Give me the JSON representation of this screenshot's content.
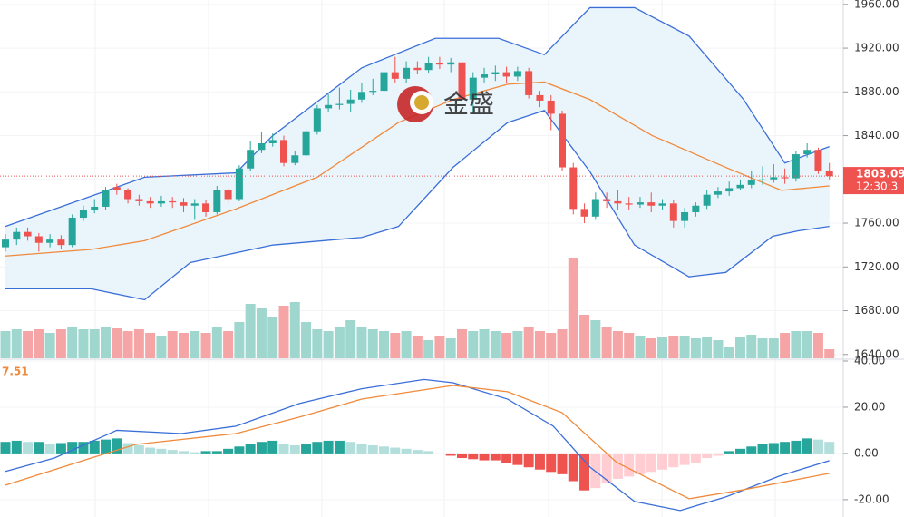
{
  "chart_data": {
    "type": "candlestick",
    "watermark": "金盛",
    "up_color": "#26a69a",
    "down_color": "#ef5350",
    "volume_up_color": "#9fd7cf",
    "volume_down_color": "#f5a5a5",
    "band_fill": "#eaf4fb",
    "ylim": [
      1636.5,
      1964
    ],
    "yticks": [
      {
        "value": 1960,
        "label": "1960.00"
      },
      {
        "value": 1920,
        "label": "1920.00"
      },
      {
        "value": 1880,
        "label": "1880.00"
      },
      {
        "value": 1840,
        "label": "1840.00"
      },
      {
        "value": 1800,
        "label": "1800.00"
      },
      {
        "value": 1760,
        "label": "1760.00"
      },
      {
        "value": 1720,
        "label": "1720.00"
      },
      {
        "value": 1680,
        "label": "1680.00"
      },
      {
        "value": 1640,
        "label": "1640.00"
      }
    ],
    "last_price": 1803.09,
    "timer": "12:30:3",
    "candles": [
      [
        1738,
        1750,
        1734,
        1745
      ],
      [
        1745,
        1756,
        1740,
        1752
      ],
      [
        1752,
        1756,
        1744,
        1748
      ],
      [
        1748,
        1751,
        1734,
        1742
      ],
      [
        1742,
        1750,
        1738,
        1745
      ],
      [
        1745,
        1749,
        1736,
        1740
      ],
      [
        1740,
        1768,
        1738,
        1765
      ],
      [
        1765,
        1776,
        1762,
        1772
      ],
      [
        1772,
        1782,
        1769,
        1775
      ],
      [
        1775,
        1793,
        1772,
        1790
      ],
      [
        1793,
        1796,
        1786,
        1790
      ],
      [
        1790,
        1792,
        1778,
        1782
      ],
      [
        1782,
        1786,
        1776,
        1780
      ],
      [
        1780,
        1784,
        1774,
        1778
      ],
      [
        1778,
        1785,
        1775,
        1780
      ],
      [
        1780,
        1784,
        1774,
        1779
      ],
      [
        1779,
        1783,
        1770,
        1776
      ],
      [
        1776,
        1782,
        1763,
        1778
      ],
      [
        1778,
        1781,
        1766,
        1770
      ],
      [
        1770,
        1794,
        1768,
        1790
      ],
      [
        1790,
        1792,
        1778,
        1782
      ],
      [
        1782,
        1813,
        1780,
        1810
      ],
      [
        1810,
        1835,
        1808,
        1827
      ],
      [
        1827,
        1843,
        1824,
        1833
      ],
      [
        1833,
        1842,
        1830,
        1836
      ],
      [
        1836,
        1840,
        1812,
        1815
      ],
      [
        1815,
        1826,
        1813,
        1822
      ],
      [
        1822,
        1847,
        1820,
        1844
      ],
      [
        1844,
        1868,
        1841,
        1865
      ],
      [
        1865,
        1878,
        1862,
        1868
      ],
      [
        1868,
        1884,
        1864,
        1869
      ],
      [
        1869,
        1882,
        1862,
        1873
      ],
      [
        1873,
        1888,
        1870,
        1880
      ],
      [
        1880,
        1892,
        1877,
        1881
      ],
      [
        1881,
        1903,
        1878,
        1898
      ],
      [
        1898,
        1912,
        1888,
        1892
      ],
      [
        1892,
        1908,
        1888,
        1902
      ],
      [
        1902,
        1908,
        1896,
        1900
      ],
      [
        1900,
        1912,
        1897,
        1906
      ],
      [
        1906,
        1912,
        1901,
        1905
      ],
      [
        1905,
        1911,
        1898,
        1907
      ],
      [
        1907,
        1910,
        1868,
        1873
      ],
      [
        1873,
        1898,
        1860,
        1893
      ],
      [
        1893,
        1902,
        1888,
        1896
      ],
      [
        1896,
        1904,
        1890,
        1898
      ],
      [
        1898,
        1903,
        1888,
        1894
      ],
      [
        1894,
        1903,
        1890,
        1899
      ],
      [
        1899,
        1902,
        1874,
        1877
      ],
      [
        1877,
        1881,
        1866,
        1872
      ],
      [
        1872,
        1877,
        1845,
        1860
      ],
      [
        1860,
        1863,
        1808,
        1811
      ],
      [
        1811,
        1815,
        1768,
        1773
      ],
      [
        1773,
        1778,
        1760,
        1766
      ],
      [
        1766,
        1788,
        1763,
        1782
      ],
      [
        1782,
        1788,
        1774,
        1780
      ],
      [
        1780,
        1790,
        1772,
        1778
      ],
      [
        1778,
        1784,
        1772,
        1777
      ],
      [
        1777,
        1784,
        1774,
        1779
      ],
      [
        1779,
        1788,
        1770,
        1776
      ],
      [
        1776,
        1782,
        1772,
        1778
      ],
      [
        1778,
        1781,
        1756,
        1762
      ],
      [
        1762,
        1774,
        1756,
        1770
      ],
      [
        1770,
        1779,
        1766,
        1776
      ],
      [
        1776,
        1790,
        1773,
        1786
      ],
      [
        1786,
        1793,
        1783,
        1789
      ],
      [
        1789,
        1798,
        1785,
        1792
      ],
      [
        1792,
        1800,
        1790,
        1795
      ],
      [
        1795,
        1808,
        1792,
        1799
      ],
      [
        1799,
        1812,
        1795,
        1800
      ],
      [
        1800,
        1814,
        1797,
        1802
      ],
      [
        1802,
        1810,
        1796,
        1801
      ],
      [
        1801,
        1826,
        1798,
        1823
      ],
      [
        1823,
        1833,
        1820,
        1827
      ],
      [
        1827,
        1829,
        1805,
        1808
      ],
      [
        1808,
        1815,
        1800,
        1803
      ]
    ],
    "volumes": [
      30,
      32,
      30,
      32,
      28,
      32,
      35,
      32,
      32,
      35,
      33,
      30,
      32,
      28,
      25,
      30,
      28,
      30,
      28,
      35,
      30,
      40,
      60,
      55,
      45,
      58,
      62,
      40,
      32,
      30,
      35,
      42,
      35,
      32,
      30,
      28,
      30,
      25,
      20,
      25,
      22,
      32,
      30,
      32,
      30,
      28,
      30,
      35,
      30,
      28,
      32,
      110,
      48,
      42,
      35,
      30,
      28,
      25,
      22,
      24,
      25,
      25,
      22,
      24,
      20,
      12,
      24,
      26,
      22,
      22,
      28,
      30,
      30,
      28,
      10
    ],
    "bands": [
      {
        "name": "upper",
        "color": "#3b6fd8",
        "x": [
          0,
          12.5,
          20.7,
          24,
          32,
          38.6,
          44.3,
          48.4,
          52.5,
          56.5,
          61.4,
          66.3,
          70,
          74
        ],
        "values": [
          1757,
          1802,
          1806,
          1840,
          1902,
          1929,
          1929,
          1914,
          1957,
          1957,
          1931,
          1873,
          1815,
          1830
        ]
      },
      {
        "name": "mid",
        "color": "#f08a3c",
        "x": [
          0,
          7.7,
          12.5,
          20.7,
          28,
          35.3,
          40.2,
          45.1,
          48.4,
          52.5,
          58.1,
          64.7,
          69.7,
          74
        ],
        "values": [
          1730,
          1736,
          1744,
          1773,
          1802,
          1852,
          1873,
          1887,
          1889,
          1873,
          1840,
          1811,
          1790,
          1794
        ]
      },
      {
        "name": "lower",
        "color": "#3b6fd8",
        "x": [
          0,
          7.7,
          12.5,
          16.6,
          24,
          32,
          35.3,
          40.2,
          45.1,
          48.4,
          52.5,
          56.5,
          61.4,
          64.7,
          68.9,
          71.2,
          74
        ],
        "values": [
          1700,
          1700,
          1690,
          1724,
          1740,
          1747,
          1757,
          1811,
          1852,
          1863,
          1807,
          1740,
          1711,
          1715,
          1748,
          1753,
          1757
        ]
      }
    ],
    "macd": {
      "ylim": [
        -27.5,
        40
      ],
      "value_label": "7.51",
      "yticks": [
        {
          "value": 40,
          "label": "40.00"
        },
        {
          "value": 20,
          "label": "20.00"
        },
        {
          "value": 0,
          "label": "0.00"
        },
        {
          "value": -20,
          "label": "-20.00"
        }
      ],
      "hist_colors": {
        "pos_up": "#26a69a",
        "pos_down": "#b2dfdb",
        "neg_down": "#ef5350",
        "neg_up": "#ffcdd2"
      },
      "histogram": [
        5,
        5.5,
        5,
        5,
        4,
        4.5,
        5,
        5,
        5.5,
        6,
        6.5,
        4.5,
        3.5,
        2.5,
        2,
        1.5,
        1,
        0.5,
        1,
        1,
        2,
        3,
        4,
        5,
        5.5,
        4,
        3.5,
        4,
        5,
        5.5,
        5.5,
        5,
        4,
        3.5,
        3,
        2.5,
        2,
        1.5,
        1,
        0,
        -1,
        -2,
        -2.5,
        -3,
        -3,
        -4,
        -5,
        -6,
        -7,
        -8,
        -9,
        -12,
        -16,
        -15,
        -13,
        -11,
        -10,
        -9,
        -8,
        -7,
        -6,
        -5,
        -4,
        -2,
        -1,
        1,
        2,
        3,
        4,
        4.5,
        5,
        5.5,
        6.5,
        6,
        5
      ],
      "lines": [
        {
          "name": "DIF",
          "color": "#3b6fd8",
          "x": [
            0,
            4.4,
            10,
            15.8,
            20.7,
            26.4,
            32,
            37.6,
            40.2,
            45.1,
            49.2,
            52.5,
            56.5,
            60.6,
            64.7,
            69.5,
            74
          ],
          "values": [
            -7.8,
            -2,
            10,
            8.6,
            11.8,
            21.6,
            28,
            32,
            30.6,
            23.5,
            11.8,
            -5.9,
            -20.8,
            -24.7,
            -18.8,
            -9.8,
            -3.1
          ]
        },
        {
          "name": "DEA",
          "color": "#f08a3c",
          "x": [
            0,
            7.7,
            11.7,
            20.7,
            26.4,
            32,
            40.2,
            45.1,
            50,
            54.9,
            61.4,
            66.3,
            74
          ],
          "values": [
            -13.7,
            -2,
            3.9,
            8.6,
            15.7,
            23.5,
            29.4,
            26.7,
            17.6,
            -3.9,
            -19.6,
            -15.7,
            -8.6
          ]
        }
      ]
    }
  }
}
